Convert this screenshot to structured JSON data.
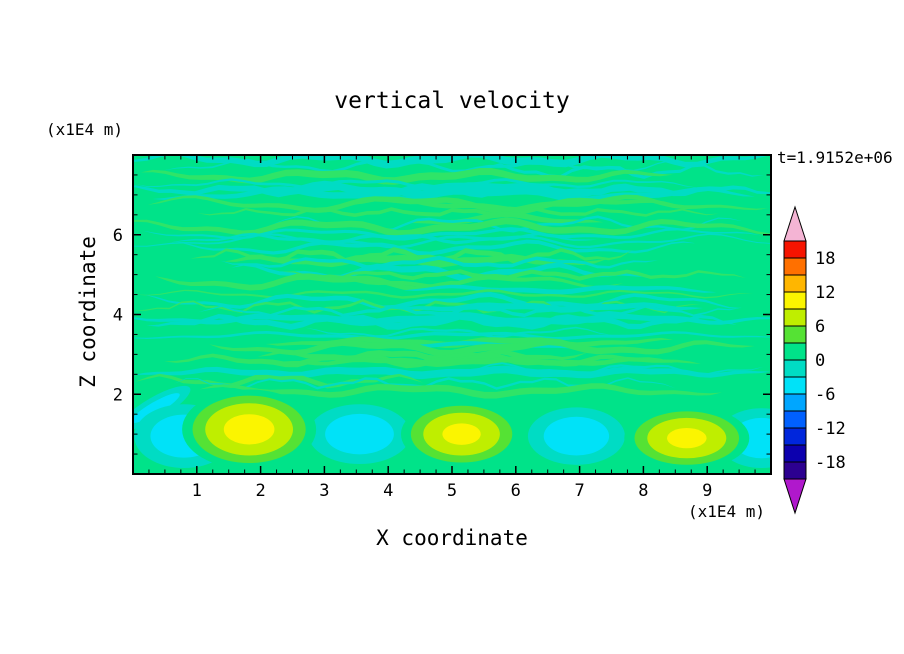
{
  "chart": {
    "title": "vertical velocity",
    "timestamp": "t=1.9152e+06",
    "xlabel": "X coordinate",
    "ylabel": "Z coordinate",
    "x_unit": "(x1E4 m)",
    "y_unit": "(x1E4 m)",
    "x_ticks": [
      1,
      2,
      3,
      4,
      5,
      6,
      7,
      8,
      9
    ],
    "y_ticks": [
      2,
      4,
      6
    ],
    "colorbar_labels": [
      "18",
      "12",
      "6",
      "0",
      "-6",
      "-12",
      "-18"
    ]
  },
  "chart_data": {
    "type": "heatmap",
    "subtype": "filled-contour",
    "title": "vertical velocity",
    "xlabel": "X coordinate (x1E4 m)",
    "ylabel": "Z coordinate (x1E4 m)",
    "time_label": "t=1.9152e+06",
    "x_range": [
      0,
      10
    ],
    "z_range": [
      0,
      8
    ],
    "contour_interval": 3,
    "contour_min": -21,
    "contour_max": 21,
    "colorbar_tick_values": [
      18,
      12,
      6,
      0,
      -6,
      -12,
      -18
    ],
    "band_colors_high_to_low": [
      "#f61400",
      "#ff7000",
      "#ffb600",
      "#fbf500",
      "#bfee00",
      "#55e234",
      "#00e389",
      "#00dcc4",
      "#00e2f8",
      "#00a6ff",
      "#0060ff",
      "#0026dc",
      "#0c00ae",
      "#2c0090"
    ],
    "over_color": "#f4b4d4",
    "under_color": "#b018cc",
    "background_value": 0,
    "description": "Vertical velocity field near zero (spring green) over most of the domain, with thin wavy horizontal bands of weakly positive (greener) and weakly negative (teal) velocity above z=2; below z=2 a row of alternating convective cells: updrafts (yellow/chartreuse cores, peaks about +10) and downdrafts (cyan cores, peaks about -6).",
    "positive_cells": [
      {
        "x": 1.82,
        "z": 1.12,
        "rx": 1.05,
        "rz": 1.0,
        "peak": 10.5
      },
      {
        "x": 5.15,
        "z": 1.0,
        "rx": 0.95,
        "rz": 0.85,
        "peak": 10.0
      },
      {
        "x": 8.68,
        "z": 0.9,
        "rx": 0.98,
        "rz": 0.8,
        "peak": 10.0
      }
    ],
    "negative_cells": [
      {
        "x": 0.8,
        "z": 0.95,
        "rx": 0.78,
        "rz": 0.8,
        "peak": -5.5
      },
      {
        "x": 3.55,
        "z": 1.0,
        "rx": 0.8,
        "rz": 0.75,
        "peak": -5.5
      },
      {
        "x": 6.95,
        "z": 0.95,
        "rx": 0.76,
        "rz": 0.72,
        "peak": -5.5
      },
      {
        "x": 9.85,
        "z": 0.9,
        "rx": 0.7,
        "rz": 0.75,
        "peak": -5.5
      }
    ]
  }
}
